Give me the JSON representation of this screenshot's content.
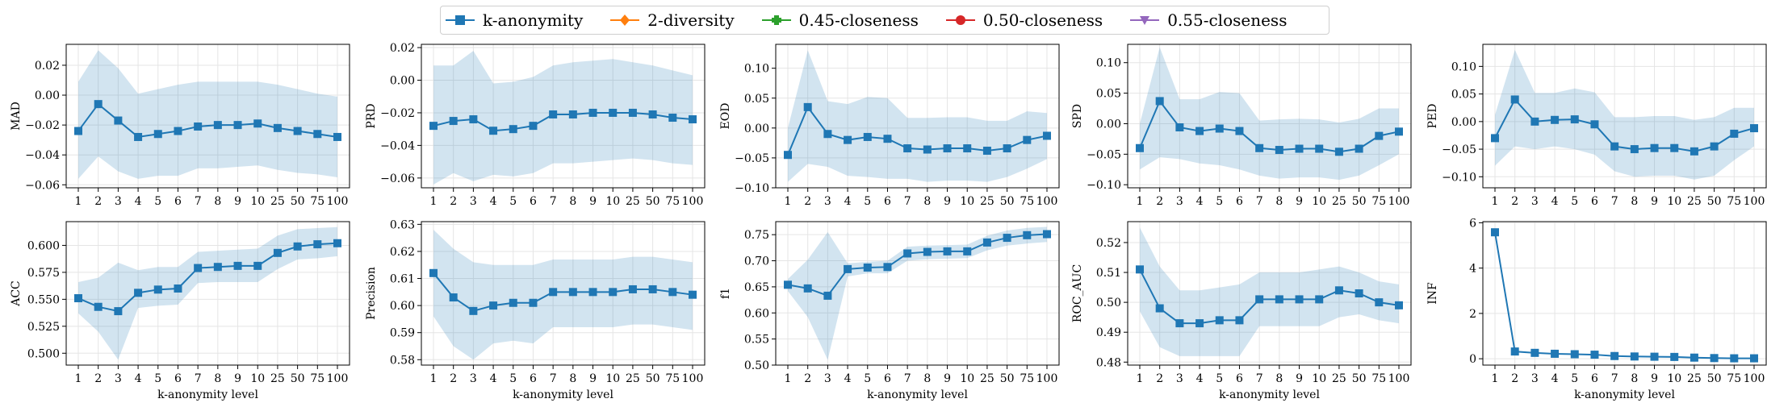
{
  "legend": {
    "entries": [
      {
        "label": "k-anonymity",
        "color": "#1f77b4",
        "marker": "square"
      },
      {
        "label": "2-diversity",
        "color": "#ff7f0e",
        "marker": "diamond"
      },
      {
        "label": "0.45-closeness",
        "color": "#2ca02c",
        "marker": "plus"
      },
      {
        "label": "0.50-closeness",
        "color": "#d62728",
        "marker": "circle"
      },
      {
        "label": "0.55-closeness",
        "color": "#9467bd",
        "marker": "triangle-down"
      }
    ]
  },
  "chart_data": [
    {
      "type": "line",
      "ylabel": "MAD",
      "xlabel": "",
      "categories": [
        "1",
        "2",
        "3",
        "4",
        "5",
        "6",
        "7",
        "8",
        "9",
        "10",
        "25",
        "50",
        "75",
        "100"
      ],
      "ylim": [
        -0.062,
        0.034
      ],
      "yticks": [
        -0.06,
        -0.04,
        -0.02,
        0.0,
        0.02
      ],
      "ytick_labels": [
        "−0.06",
        "−0.04",
        "−0.02",
        "0.00",
        "0.02"
      ],
      "series": [
        {
          "name": "k-anonymity",
          "color": "#1f77b4",
          "values": [
            -0.024,
            -0.006,
            -0.017,
            -0.028,
            -0.026,
            -0.024,
            -0.021,
            -0.02,
            -0.02,
            -0.019,
            -0.022,
            -0.024,
            -0.026,
            -0.028
          ],
          "band_upper": [
            0.009,
            0.03,
            0.018,
            0.001,
            0.004,
            0.007,
            0.009,
            0.009,
            0.009,
            0.009,
            0.007,
            0.004,
            0.001,
            -0.001
          ],
          "band_lower": [
            -0.056,
            -0.041,
            -0.051,
            -0.056,
            -0.054,
            -0.054,
            -0.049,
            -0.049,
            -0.048,
            -0.047,
            -0.05,
            -0.052,
            -0.053,
            -0.055
          ]
        }
      ]
    },
    {
      "type": "line",
      "ylabel": "PRD",
      "xlabel": "",
      "categories": [
        "1",
        "2",
        "3",
        "4",
        "5",
        "6",
        "7",
        "8",
        "9",
        "10",
        "25",
        "50",
        "75",
        "100"
      ],
      "ylim": [
        -0.066,
        0.022
      ],
      "yticks": [
        -0.06,
        -0.04,
        -0.02,
        0.0,
        0.02
      ],
      "ytick_labels": [
        "−0.06",
        "−0.04",
        "−0.02",
        "0.00",
        "0.02"
      ],
      "series": [
        {
          "name": "k-anonymity",
          "color": "#1f77b4",
          "values": [
            -0.028,
            -0.025,
            -0.024,
            -0.031,
            -0.03,
            -0.028,
            -0.021,
            -0.021,
            -0.02,
            -0.02,
            -0.02,
            -0.021,
            -0.023,
            -0.024
          ],
          "band_upper": [
            0.009,
            0.009,
            0.018,
            -0.002,
            -0.001,
            0.002,
            0.009,
            0.011,
            0.012,
            0.013,
            0.011,
            0.009,
            0.006,
            0.003
          ],
          "band_lower": [
            -0.064,
            -0.057,
            -0.062,
            -0.058,
            -0.059,
            -0.057,
            -0.051,
            -0.051,
            -0.05,
            -0.049,
            -0.048,
            -0.049,
            -0.051,
            -0.052
          ]
        }
      ]
    },
    {
      "type": "line",
      "ylabel": "EOD",
      "xlabel": "",
      "categories": [
        "1",
        "2",
        "3",
        "4",
        "5",
        "6",
        "7",
        "8",
        "9",
        "10",
        "25",
        "50",
        "75",
        "100"
      ],
      "ylim": [
        -0.1,
        0.14
      ],
      "yticks": [
        -0.1,
        -0.05,
        0.0,
        0.05,
        0.1
      ],
      "ytick_labels": [
        "−0.10",
        "−0.05",
        "0.00",
        "0.05",
        "0.10"
      ],
      "series": [
        {
          "name": "k-anonymity",
          "color": "#1f77b4",
          "values": [
            -0.045,
            0.035,
            -0.01,
            -0.02,
            -0.015,
            -0.018,
            -0.034,
            -0.036,
            -0.034,
            -0.034,
            -0.038,
            -0.034,
            -0.02,
            -0.013
          ],
          "band_upper": [
            0.0,
            0.13,
            0.045,
            0.04,
            0.052,
            0.05,
            0.017,
            0.017,
            0.018,
            0.018,
            0.012,
            0.012,
            0.028,
            0.025
          ],
          "band_lower": [
            -0.09,
            -0.06,
            -0.065,
            -0.08,
            -0.082,
            -0.085,
            -0.085,
            -0.09,
            -0.088,
            -0.088,
            -0.09,
            -0.082,
            -0.068,
            -0.052
          ]
        }
      ]
    },
    {
      "type": "line",
      "ylabel": "SPD",
      "xlabel": "",
      "categories": [
        "1",
        "2",
        "3",
        "4",
        "5",
        "6",
        "7",
        "8",
        "9",
        "10",
        "25",
        "50",
        "75",
        "100"
      ],
      "ylim": [
        -0.105,
        0.13
      ],
      "yticks": [
        -0.1,
        -0.05,
        0.0,
        0.05,
        0.1
      ],
      "ytick_labels": [
        "−0.10",
        "−0.05",
        "0.00",
        "0.05",
        "0.10"
      ],
      "series": [
        {
          "name": "k-anonymity",
          "color": "#1f77b4",
          "values": [
            -0.04,
            0.037,
            -0.006,
            -0.012,
            -0.008,
            -0.012,
            -0.04,
            -0.043,
            -0.041,
            -0.041,
            -0.046,
            -0.041,
            -0.02,
            -0.013
          ],
          "band_upper": [
            0.0,
            0.125,
            0.04,
            0.04,
            0.052,
            0.05,
            0.005,
            0.007,
            0.008,
            0.007,
            0.002,
            0.008,
            0.025,
            0.025
          ],
          "band_lower": [
            -0.075,
            -0.055,
            -0.058,
            -0.065,
            -0.068,
            -0.075,
            -0.085,
            -0.09,
            -0.088,
            -0.088,
            -0.092,
            -0.085,
            -0.068,
            -0.05
          ]
        }
      ]
    },
    {
      "type": "line",
      "ylabel": "PED",
      "xlabel": "",
      "categories": [
        "1",
        "2",
        "3",
        "4",
        "5",
        "6",
        "7",
        "8",
        "9",
        "10",
        "25",
        "50",
        "75",
        "100"
      ],
      "ylim": [
        -0.12,
        0.14
      ],
      "yticks": [
        -0.1,
        -0.05,
        0.0,
        0.05,
        0.1
      ],
      "ytick_labels": [
        "−0.10",
        "−0.05",
        "0.00",
        "0.05",
        "0.10"
      ],
      "series": [
        {
          "name": "k-anonymity",
          "color": "#1f77b4",
          "values": [
            -0.03,
            0.04,
            0.0,
            0.003,
            0.004,
            -0.005,
            -0.045,
            -0.05,
            -0.048,
            -0.048,
            -0.054,
            -0.045,
            -0.022,
            -0.012
          ],
          "band_upper": [
            0.012,
            0.13,
            0.052,
            0.052,
            0.06,
            0.053,
            0.008,
            0.008,
            0.01,
            0.01,
            0.003,
            0.008,
            0.025,
            0.025
          ],
          "band_lower": [
            -0.08,
            -0.045,
            -0.05,
            -0.045,
            -0.05,
            -0.06,
            -0.09,
            -0.1,
            -0.098,
            -0.098,
            -0.105,
            -0.098,
            -0.07,
            -0.045
          ]
        }
      ]
    },
    {
      "type": "line",
      "ylabel": "ACC",
      "xlabel": "k-anonymity level",
      "categories": [
        "1",
        "2",
        "3",
        "4",
        "5",
        "6",
        "7",
        "8",
        "9",
        "10",
        "25",
        "50",
        "75",
        "100"
      ],
      "ylim": [
        0.489,
        0.622
      ],
      "yticks": [
        0.5,
        0.525,
        0.55,
        0.575,
        0.6
      ],
      "ytick_labels": [
        "0.500",
        "0.525",
        "0.550",
        "0.575",
        "0.600"
      ],
      "series": [
        {
          "name": "k-anonymity",
          "color": "#1f77b4",
          "values": [
            0.551,
            0.543,
            0.539,
            0.556,
            0.559,
            0.56,
            0.579,
            0.58,
            0.581,
            0.581,
            0.593,
            0.599,
            0.601,
            0.602
          ],
          "band_upper": [
            0.566,
            0.57,
            0.584,
            0.577,
            0.58,
            0.58,
            0.594,
            0.595,
            0.596,
            0.597,
            0.609,
            0.615,
            0.616,
            0.617
          ],
          "band_lower": [
            0.537,
            0.52,
            0.494,
            0.542,
            0.544,
            0.545,
            0.565,
            0.566,
            0.566,
            0.566,
            0.578,
            0.587,
            0.588,
            0.59
          ]
        }
      ]
    },
    {
      "type": "line",
      "ylabel": "Precision",
      "xlabel": "k-anonymity level",
      "categories": [
        "1",
        "2",
        "3",
        "4",
        "5",
        "6",
        "7",
        "8",
        "9",
        "10",
        "25",
        "50",
        "75",
        "100"
      ],
      "ylim": [
        0.578,
        0.631
      ],
      "yticks": [
        0.58,
        0.59,
        0.6,
        0.61,
        0.62,
        0.63
      ],
      "ytick_labels": [
        "0.58",
        "0.59",
        "0.60",
        "0.61",
        "0.62",
        "0.63"
      ],
      "series": [
        {
          "name": "k-anonymity",
          "color": "#1f77b4",
          "values": [
            0.612,
            0.603,
            0.598,
            0.6,
            0.601,
            0.601,
            0.605,
            0.605,
            0.605,
            0.605,
            0.606,
            0.606,
            0.605,
            0.604
          ],
          "band_upper": [
            0.628,
            0.621,
            0.616,
            0.615,
            0.615,
            0.615,
            0.617,
            0.617,
            0.617,
            0.617,
            0.618,
            0.618,
            0.617,
            0.616
          ],
          "band_lower": [
            0.596,
            0.585,
            0.58,
            0.586,
            0.587,
            0.586,
            0.592,
            0.592,
            0.592,
            0.592,
            0.593,
            0.593,
            0.592,
            0.591
          ]
        }
      ]
    },
    {
      "type": "line",
      "ylabel": "f1",
      "xlabel": "k-anonymity level",
      "categories": [
        "1",
        "2",
        "3",
        "4",
        "5",
        "6",
        "7",
        "8",
        "9",
        "10",
        "25",
        "50",
        "75",
        "100"
      ],
      "ylim": [
        0.5,
        0.775
      ],
      "yticks": [
        0.5,
        0.55,
        0.6,
        0.65,
        0.7,
        0.75
      ],
      "ytick_labels": [
        "0.50",
        "0.55",
        "0.60",
        "0.65",
        "0.70",
        "0.75"
      ],
      "series": [
        {
          "name": "k-anonymity",
          "color": "#1f77b4",
          "values": [
            0.654,
            0.647,
            0.633,
            0.684,
            0.687,
            0.688,
            0.714,
            0.717,
            0.718,
            0.718,
            0.735,
            0.744,
            0.749,
            0.751
          ],
          "band_upper": [
            0.665,
            0.702,
            0.755,
            0.695,
            0.698,
            0.7,
            0.727,
            0.729,
            0.73,
            0.731,
            0.748,
            0.758,
            0.763,
            0.765
          ],
          "band_lower": [
            0.642,
            0.592,
            0.51,
            0.67,
            0.676,
            0.676,
            0.7,
            0.703,
            0.704,
            0.705,
            0.72,
            0.729,
            0.733,
            0.736
          ]
        }
      ]
    },
    {
      "type": "line",
      "ylabel": "ROC_AUC",
      "xlabel": "k-anonymity level",
      "categories": [
        "1",
        "2",
        "3",
        "4",
        "5",
        "6",
        "7",
        "8",
        "9",
        "10",
        "25",
        "50",
        "75",
        "100"
      ],
      "ylim": [
        0.479,
        0.527
      ],
      "yticks": [
        0.48,
        0.49,
        0.5,
        0.51,
        0.52
      ],
      "ytick_labels": [
        "0.48",
        "0.49",
        "0.50",
        "0.51",
        "0.52"
      ],
      "series": [
        {
          "name": "k-anonymity",
          "color": "#1f77b4",
          "values": [
            0.511,
            0.498,
            0.493,
            0.493,
            0.494,
            0.494,
            0.501,
            0.501,
            0.501,
            0.501,
            0.504,
            0.503,
            0.5,
            0.499
          ],
          "band_upper": [
            0.525,
            0.512,
            0.504,
            0.504,
            0.505,
            0.506,
            0.51,
            0.51,
            0.51,
            0.511,
            0.512,
            0.51,
            0.507,
            0.506
          ],
          "band_lower": [
            0.497,
            0.485,
            0.482,
            0.482,
            0.482,
            0.482,
            0.492,
            0.492,
            0.492,
            0.492,
            0.495,
            0.496,
            0.494,
            0.493
          ]
        }
      ]
    },
    {
      "type": "line",
      "ylabel": "INF",
      "xlabel": "k-anonymity level",
      "categories": [
        "1",
        "2",
        "3",
        "4",
        "5",
        "6",
        "7",
        "8",
        "9",
        "10",
        "25",
        "50",
        "75",
        "100"
      ],
      "ylim": [
        -0.28,
        6.05
      ],
      "yticks": [
        0,
        2,
        4,
        6
      ],
      "ytick_labels": [
        "0",
        "2",
        "4",
        "6"
      ],
      "series": [
        {
          "name": "k-anonymity",
          "color": "#1f77b4",
          "values": [
            5.58,
            0.32,
            0.26,
            0.22,
            0.2,
            0.18,
            0.12,
            0.1,
            0.09,
            0.08,
            0.05,
            0.03,
            0.02,
            0.02
          ],
          "band_upper": [
            5.58,
            0.32,
            0.26,
            0.22,
            0.2,
            0.18,
            0.12,
            0.1,
            0.09,
            0.08,
            0.05,
            0.03,
            0.02,
            0.02
          ],
          "band_lower": [
            5.58,
            0.32,
            0.26,
            0.22,
            0.2,
            0.18,
            0.12,
            0.1,
            0.09,
            0.08,
            0.05,
            0.03,
            0.02,
            0.02
          ]
        }
      ]
    }
  ]
}
